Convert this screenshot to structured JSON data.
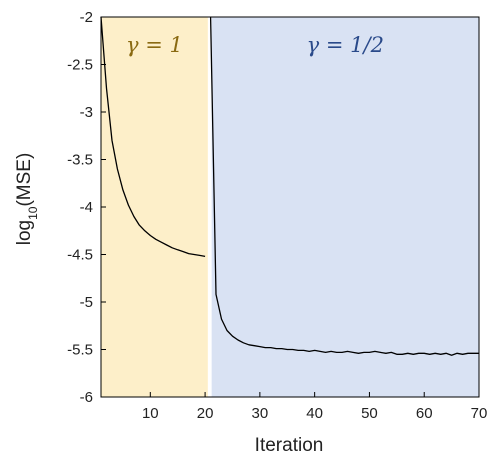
{
  "chart_data": {
    "type": "line",
    "xlabel": "Iteration",
    "ylabel": {
      "base": "log",
      "sub": "10",
      "rest": "(MSE)"
    },
    "xlim": [
      1,
      70
    ],
    "ylim": [
      -6,
      -2
    ],
    "xticks": [
      10,
      20,
      30,
      40,
      50,
      60,
      70
    ],
    "xtick_labels": [
      "10",
      "20",
      "30",
      "40",
      "50",
      "60",
      "70"
    ],
    "yticks": [
      -2,
      -2.5,
      -3,
      -3.5,
      -4,
      -4.5,
      -5,
      -5.5,
      -6
    ],
    "ytick_labels": [
      "-2",
      "-2.5",
      "-3",
      "-3.5",
      "-4",
      "-4.5",
      "-5",
      "-5.5",
      "-6"
    ],
    "grid": false,
    "regions": [
      {
        "label": "γ = 1",
        "x_range": [
          1,
          20.5
        ],
        "color": "#fdefc9",
        "label_color": "#8a6a12"
      },
      {
        "label": "γ = 1/2",
        "x_range": [
          21.2,
          70
        ],
        "color": "#d9e2f3",
        "label_color": "#2a4a8a"
      }
    ],
    "series": [
      {
        "color": "#000000",
        "x": [
          1,
          2,
          3,
          4,
          5,
          6,
          7,
          8,
          9,
          10,
          11,
          12,
          13,
          14,
          15,
          16,
          17,
          18,
          19,
          20
        ],
        "values": [
          -2.0,
          -2.75,
          -3.3,
          -3.6,
          -3.82,
          -3.98,
          -4.1,
          -4.19,
          -4.25,
          -4.3,
          -4.34,
          -4.37,
          -4.4,
          -4.43,
          -4.45,
          -4.47,
          -4.49,
          -4.5,
          -4.51,
          -4.52
        ]
      },
      {
        "color": "#000000",
        "x": [
          21,
          22,
          23,
          24,
          25,
          26,
          27,
          28,
          29,
          30,
          31,
          32,
          33,
          34,
          35,
          36,
          37,
          38,
          39,
          40,
          41,
          42,
          43,
          44,
          45,
          46,
          47,
          48,
          49,
          50,
          51,
          52,
          53,
          54,
          55,
          56,
          57,
          58,
          59,
          60,
          61,
          62,
          63,
          64,
          65,
          66,
          67,
          68,
          69,
          70
        ],
        "values": [
          -2.0,
          -4.92,
          -5.18,
          -5.3,
          -5.36,
          -5.4,
          -5.43,
          -5.45,
          -5.46,
          -5.47,
          -5.48,
          -5.48,
          -5.49,
          -5.49,
          -5.5,
          -5.5,
          -5.51,
          -5.51,
          -5.52,
          -5.51,
          -5.52,
          -5.53,
          -5.52,
          -5.53,
          -5.53,
          -5.52,
          -5.53,
          -5.54,
          -5.53,
          -5.53,
          -5.52,
          -5.53,
          -5.54,
          -5.53,
          -5.55,
          -5.55,
          -5.54,
          -5.55,
          -5.54,
          -5.54,
          -5.55,
          -5.54,
          -5.55,
          -5.54,
          -5.56,
          -5.54,
          -5.55,
          -5.54,
          -5.54,
          -5.54
        ]
      }
    ]
  }
}
